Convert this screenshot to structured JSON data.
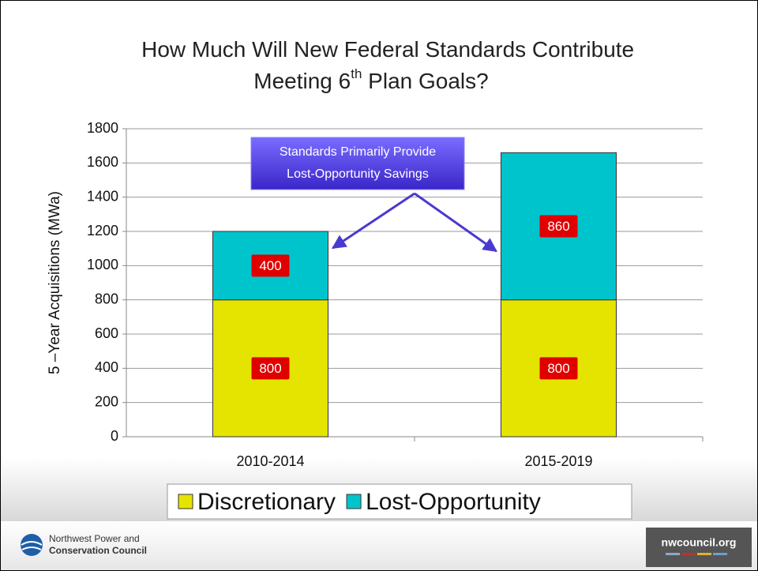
{
  "chart_data": {
    "type": "bar",
    "stacked": true,
    "title": [
      "How Much Will New Federal Standards Contribute",
      "Meeting 6",
      "th",
      " Plan Goals?"
    ],
    "ylabel": "5 –Year  Acquisitions (MWa)",
    "categories": [
      "2010-2014",
      "2015-2019"
    ],
    "series": [
      {
        "name": "Discretionary",
        "color": "#e4e400",
        "values": [
          800,
          800
        ]
      },
      {
        "name": "Lost-Opportunity",
        "color": "#00c4cc",
        "values": [
          400,
          860
        ]
      }
    ],
    "ylim": [
      0,
      1800
    ],
    "yticks": [
      0,
      200,
      400,
      600,
      800,
      1000,
      1200,
      1400,
      1600,
      1800
    ],
    "grid": true,
    "legend": "bottom",
    "annotation": [
      "Standards Primarily Provide",
      "Lost-Opportunity Savings"
    ]
  },
  "footer": {
    "organization": [
      "Northwest Power and",
      "Conservation Council"
    ],
    "website": "nwcouncil.org"
  }
}
